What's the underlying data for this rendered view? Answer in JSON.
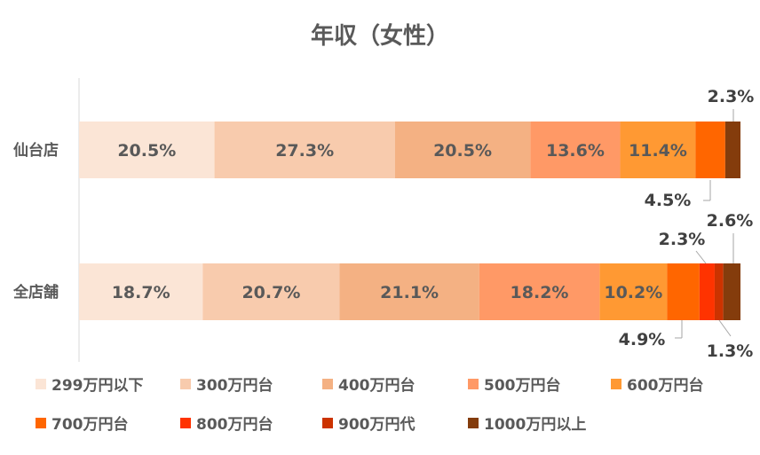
{
  "chart_data": {
    "type": "bar",
    "orientation": "horizontal",
    "stacked": "percent",
    "title": "年収（女性）",
    "categories": [
      "仙台店",
      "全店舗"
    ],
    "series": [
      {
        "name": "299万円以下",
        "color": "#FBE5D6",
        "values": [
          20.5,
          18.7
        ],
        "labels": [
          "20.5%",
          "18.7%"
        ]
      },
      {
        "name": "300万円台",
        "color": "#F8CBAD",
        "values": [
          27.3,
          20.7
        ],
        "labels": [
          "27.3%",
          "20.7%"
        ]
      },
      {
        "name": "400万円台",
        "color": "#F4B183",
        "values": [
          20.5,
          21.1
        ],
        "labels": [
          "20.5%",
          "21.1%"
        ]
      },
      {
        "name": "500万円台",
        "color": "#FF9966",
        "values": [
          13.6,
          18.2
        ],
        "labels": [
          "13.6%",
          "18.2%"
        ]
      },
      {
        "name": "600万円台",
        "color": "#FF9933",
        "values": [
          11.4,
          10.2
        ],
        "labels": [
          "11.4%",
          "10.2%"
        ]
      },
      {
        "name": "700万円台",
        "color": "#FF6600",
        "values": [
          4.5,
          4.9
        ],
        "labels": [
          "4.5%",
          "4.9%"
        ]
      },
      {
        "name": "800万円台",
        "color": "#FF3300",
        "values": [
          0,
          2.3
        ],
        "labels": [
          "",
          "2.3%"
        ]
      },
      {
        "name": "900万円代",
        "color": "#CC3300",
        "values": [
          0,
          1.3
        ],
        "labels": [
          "",
          "1.3%"
        ]
      },
      {
        "name": "1000万円以上",
        "color": "#843C0C",
        "values": [
          2.3,
          2.6
        ],
        "labels": [
          "2.3%",
          "2.6%"
        ]
      }
    ],
    "xlim": [
      0,
      100
    ],
    "legend_position": "bottom",
    "grid": false
  }
}
